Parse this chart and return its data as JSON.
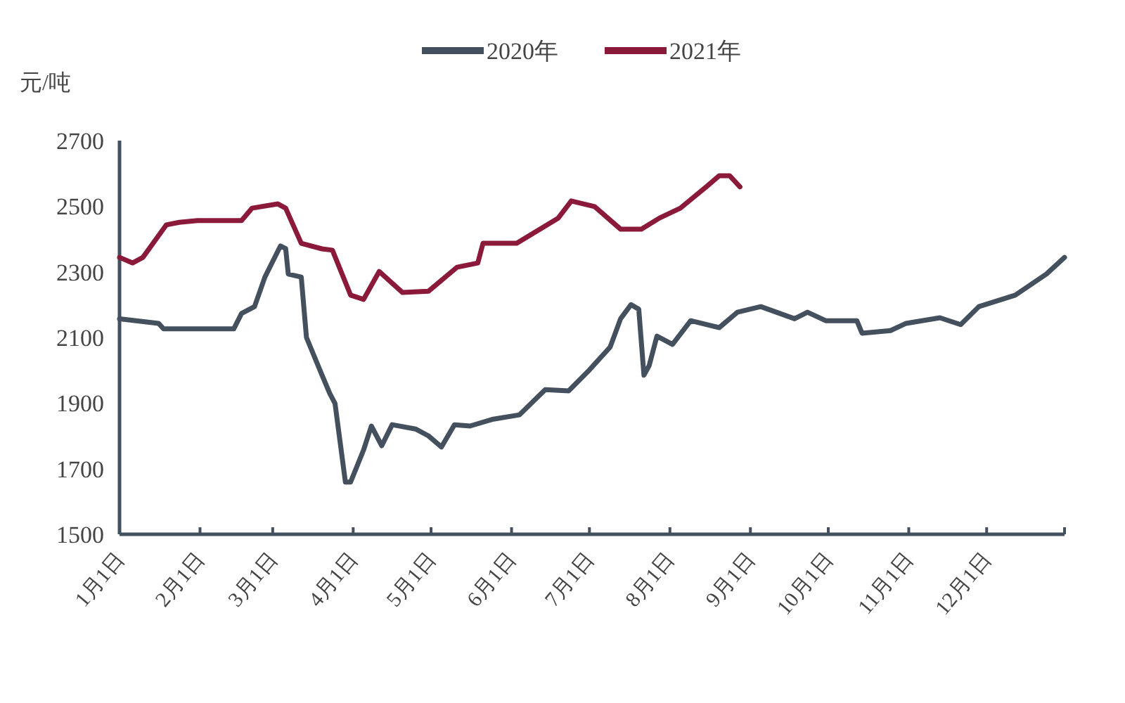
{
  "chart_data": {
    "type": "line",
    "ylabel": "元/吨",
    "legend": "top",
    "xlim": [
      "--01-01",
      "--12-31"
    ],
    "xticks": [
      {
        "value": "--01-01",
        "label": "1月1日"
      },
      {
        "value": "--02-01",
        "label": "2月1日"
      },
      {
        "value": "--03-01",
        "label": "3月1日"
      },
      {
        "value": "--04-01",
        "label": "4月1日"
      },
      {
        "value": "--05-01",
        "label": "5月1日"
      },
      {
        "value": "--06-01",
        "label": "6月1日"
      },
      {
        "value": "--07-01",
        "label": "7月1日"
      },
      {
        "value": "--08-01",
        "label": "8月1日"
      },
      {
        "value": "--09-01",
        "label": "9月1日"
      },
      {
        "value": "--10-01",
        "label": "10月1日"
      },
      {
        "value": "--11-01",
        "label": "11月1日"
      },
      {
        "value": "--12-01",
        "label": "12月1日"
      },
      {
        "value": "--12-31",
        "label": null
      }
    ],
    "ylim": [
      1500,
      2700
    ],
    "yticks": [
      1500,
      1700,
      1900,
      2100,
      2300,
      2500,
      2700
    ],
    "series": [
      {
        "name": "2020年",
        "color": "#44505e",
        "x": [
          "--01-01",
          "--01-16",
          "--01-18",
          "--02-14",
          "--02-17",
          "--02-22",
          "--02-26",
          "--03-04",
          "--03-06",
          "--03-07",
          "--03-12",
          "--03-14",
          "--03-20",
          "--03-23",
          "--03-25",
          "--03-29",
          "--03-31",
          "--04-05",
          "--04-08",
          "--04-12",
          "--04-16",
          "--04-25",
          "--04-30",
          "--05-05",
          "--05-10",
          "--05-16",
          "--05-25",
          "--06-04",
          "--06-14",
          "--06-23",
          "--07-01",
          "--07-09",
          "--07-13",
          "--07-17",
          "--07-20",
          "--07-22",
          "--07-24",
          "--07-27",
          "--08-02",
          "--08-09",
          "--08-20",
          "--08-27",
          "--09-05",
          "--09-18",
          "--09-23",
          "--09-30",
          "--10-12",
          "--10-14",
          "--10-25",
          "--10-31",
          "--11-13",
          "--11-21",
          "--11-28",
          "--12-12",
          "--12-24",
          "--12-31"
        ],
        "values": [
          2157,
          2143,
          2126,
          2126,
          2173,
          2194,
          2284,
          2379,
          2371,
          2293,
          2284,
          2100,
          1985,
          1929,
          1899,
          1659,
          1659,
          1757,
          1830,
          1770,
          1834,
          1821,
          1800,
          1766,
          1834,
          1830,
          1851,
          1864,
          1941,
          1937,
          2001,
          2071,
          2157,
          2200,
          2186,
          1985,
          2014,
          2104,
          2079,
          2151,
          2130,
          2177,
          2194,
          2157,
          2177,
          2151,
          2151,
          2113,
          2121,
          2143,
          2160,
          2139,
          2194,
          2229,
          2293,
          2344
        ]
      },
      {
        "name": "2021年",
        "color": "#8b1a3a",
        "x": [
          "--01-01",
          "--01-06",
          "--01-10",
          "--01-19",
          "--01-24",
          "--01-31",
          "--02-17",
          "--02-21",
          "--03-03",
          "--03-06",
          "--03-12",
          "--03-20",
          "--03-24",
          "--03-31",
          "--04-05",
          "--04-11",
          "--04-20",
          "--04-30",
          "--05-11",
          "--05-19",
          "--05-21",
          "--06-03",
          "--06-19",
          "--06-24",
          "--07-03",
          "--07-13",
          "--07-21",
          "--07-28",
          "--08-05",
          "--08-15",
          "--08-20",
          "--08-24",
          "--08-28"
        ],
        "values": [
          2344,
          2327,
          2344,
          2443,
          2451,
          2456,
          2456,
          2494,
          2507,
          2494,
          2387,
          2370,
          2366,
          2229,
          2216,
          2301,
          2237,
          2241,
          2314,
          2327,
          2387,
          2387,
          2464,
          2516,
          2499,
          2430,
          2430,
          2464,
          2494,
          2559,
          2593,
          2593,
          2559
        ]
      }
    ]
  }
}
